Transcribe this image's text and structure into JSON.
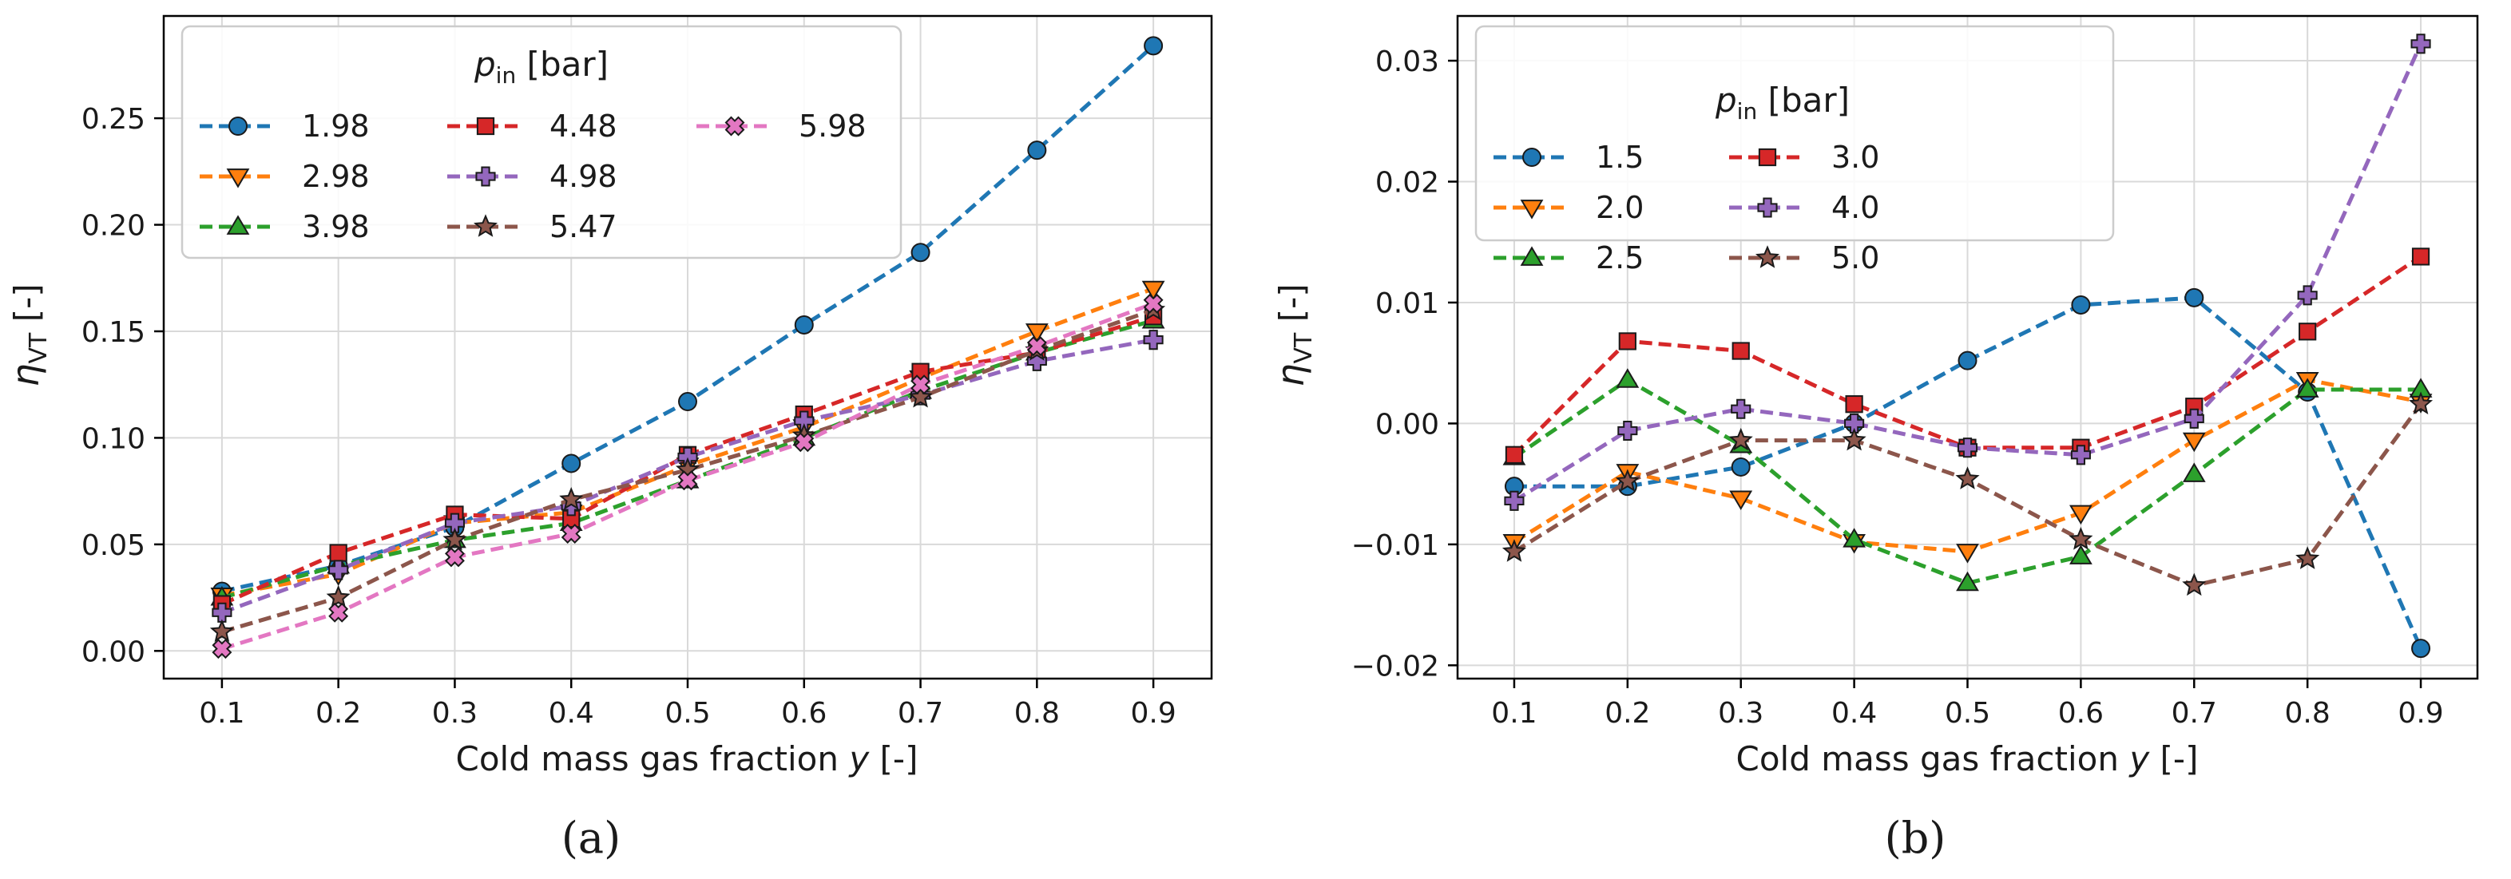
{
  "chart_data": [
    {
      "type": "line",
      "panel_label": "(a)",
      "xlabel": "Cold mass gas fraction y [-]",
      "ylabel": "η_VT [-]",
      "ylabel_symbol": "η",
      "ylabel_subscript": "VT",
      "ylabel_unit": " [-]",
      "xlabel_main": "Cold mass gas fraction ",
      "xlabel_var": "y",
      "xlabel_unit": " [-]",
      "legend_title_symbol": "p",
      "legend_title_subscript": "in",
      "legend_title_unit": " [bar]",
      "legend_placement": "top-left",
      "grid": true,
      "xlim": [
        0.05,
        0.95
      ],
      "ylim": [
        -0.013,
        0.298
      ],
      "xticks": [
        0.1,
        0.2,
        0.3,
        0.4,
        0.5,
        0.6,
        0.7,
        0.8,
        0.9
      ],
      "xtick_labels": [
        "0.1",
        "0.2",
        "0.3",
        "0.4",
        "0.5",
        "0.6",
        "0.7",
        "0.8",
        "0.9"
      ],
      "yticks": [
        0.0,
        0.05,
        0.1,
        0.15,
        0.2,
        0.25
      ],
      "ytick_labels": [
        "0.00",
        "0.05",
        "0.10",
        "0.15",
        "0.20",
        "0.25"
      ],
      "x": [
        0.1,
        0.2,
        0.3,
        0.4,
        0.5,
        0.6,
        0.7,
        0.8,
        0.9
      ],
      "series": [
        {
          "name": "1.98",
          "color": "#1f77b4",
          "marker": "circle",
          "values": [
            0.028,
            0.04,
            0.058,
            0.088,
            0.117,
            0.153,
            0.187,
            0.235,
            0.284
          ]
        },
        {
          "name": "2.98",
          "color": "#ff7f0e",
          "marker": "triangle-down",
          "values": [
            0.026,
            0.036,
            0.06,
            0.065,
            0.087,
            0.105,
            0.128,
            0.15,
            0.17
          ]
        },
        {
          "name": "3.98",
          "color": "#2ca02c",
          "marker": "triangle-up",
          "values": [
            0.025,
            0.04,
            0.052,
            0.06,
            0.08,
            0.1,
            0.122,
            0.14,
            0.155
          ]
        },
        {
          "name": "4.48",
          "color": "#d62728",
          "marker": "square",
          "values": [
            0.022,
            0.046,
            0.064,
            0.062,
            0.092,
            0.111,
            0.131,
            0.14,
            0.157
          ]
        },
        {
          "name": "4.98",
          "color": "#9467bd",
          "marker": "plus",
          "values": [
            0.018,
            0.038,
            0.06,
            0.068,
            0.091,
            0.108,
            0.12,
            0.136,
            0.146
          ]
        },
        {
          "name": "5.47",
          "color": "#8c564b",
          "marker": "star",
          "values": [
            0.009,
            0.025,
            0.052,
            0.071,
            0.085,
            0.101,
            0.119,
            0.141,
            0.16
          ]
        },
        {
          "name": "5.98",
          "color": "#e377c2",
          "marker": "x",
          "values": [
            0.001,
            0.018,
            0.044,
            0.055,
            0.08,
            0.098,
            0.125,
            0.143,
            0.163
          ]
        }
      ]
    },
    {
      "type": "line",
      "panel_label": "(b)",
      "xlabel": "Cold mass gas fraction y [-]",
      "ylabel": "η_VT [-]",
      "ylabel_symbol": "η",
      "ylabel_subscript": "VT",
      "ylabel_unit": " [-]",
      "xlabel_main": "Cold mass gas fraction ",
      "xlabel_var": "y",
      "xlabel_unit": " [-]",
      "legend_title_symbol": "p",
      "legend_title_subscript": "in",
      "legend_title_unit": " [bar]",
      "legend_placement": "top-left",
      "grid": true,
      "xlim": [
        0.05,
        0.95
      ],
      "ylim": [
        -0.0211,
        0.0337
      ],
      "xticks": [
        0.1,
        0.2,
        0.3,
        0.4,
        0.5,
        0.6,
        0.7,
        0.8,
        0.9
      ],
      "xtick_labels": [
        "0.1",
        "0.2",
        "0.3",
        "0.4",
        "0.5",
        "0.6",
        "0.7",
        "0.8",
        "0.9"
      ],
      "yticks": [
        -0.02,
        -0.01,
        0.0,
        0.01,
        0.02,
        0.03
      ],
      "ytick_labels": [
        "−0.02",
        "−0.01",
        "0.00",
        "0.01",
        "0.02",
        "0.03"
      ],
      "x": [
        0.1,
        0.2,
        0.3,
        0.4,
        0.5,
        0.6,
        0.7,
        0.8,
        0.9
      ],
      "series": [
        {
          "name": "1.5",
          "color": "#1f77b4",
          "marker": "circle",
          "values": [
            -0.0052,
            -0.0052,
            -0.0036,
            0.0,
            0.0052,
            0.0098,
            0.0104,
            0.0026,
            -0.0186
          ]
        },
        {
          "name": "2.0",
          "color": "#ff7f0e",
          "marker": "triangle-down",
          "values": [
            -0.0098,
            -0.004,
            -0.0062,
            -0.0098,
            -0.0106,
            -0.0074,
            -0.0014,
            0.0036,
            0.0018
          ]
        },
        {
          "name": "2.5",
          "color": "#2ca02c",
          "marker": "triangle-up",
          "values": [
            -0.0028,
            0.0036,
            -0.0018,
            -0.0096,
            -0.0132,
            -0.011,
            -0.0042,
            0.0028,
            0.0028
          ]
        },
        {
          "name": "3.0",
          "color": "#d62728",
          "marker": "square",
          "values": [
            -0.0026,
            0.0068,
            0.006,
            0.0016,
            -0.002,
            -0.002,
            0.0014,
            0.0076,
            0.0138
          ]
        },
        {
          "name": "4.0",
          "color": "#9467bd",
          "marker": "plus",
          "values": [
            -0.0064,
            -0.0006,
            0.0012,
            0.0,
            -0.002,
            -0.0026,
            0.0004,
            0.0106,
            0.0314
          ]
        },
        {
          "name": "5.0",
          "color": "#8c564b",
          "marker": "star",
          "values": [
            -0.0106,
            -0.0048,
            -0.0014,
            -0.0014,
            -0.0046,
            -0.0096,
            -0.0134,
            -0.0112,
            0.0016
          ]
        }
      ]
    }
  ]
}
